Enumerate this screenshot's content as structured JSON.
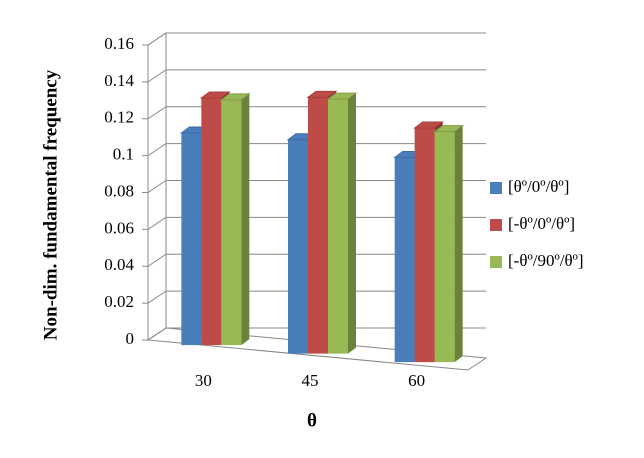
{
  "chart_data": {
    "type": "bar3d",
    "y_label": "Non-dim. fundamental frequency",
    "x_label": "θ",
    "categories": [
      "30",
      "45",
      "60"
    ],
    "series": [
      {
        "name": "[θº/0º/θº]",
        "color": "#4a7ebb",
        "values": [
          0.115,
          0.116,
          0.111
        ]
      },
      {
        "name": "[-θº/0º/θº]",
        "color": "#be4b48",
        "values": [
          0.134,
          0.139,
          0.127
        ]
      },
      {
        "name": "[-θº/90º/θº]",
        "color": "#98b954",
        "values": [
          0.133,
          0.138,
          0.125
        ]
      }
    ],
    "ylim": [
      0,
      0.16
    ],
    "yticks": [
      0,
      0.02,
      0.04,
      0.06,
      0.08,
      0.1,
      0.12,
      0.14,
      0.16
    ],
    "grid": true,
    "legend": "right"
  }
}
